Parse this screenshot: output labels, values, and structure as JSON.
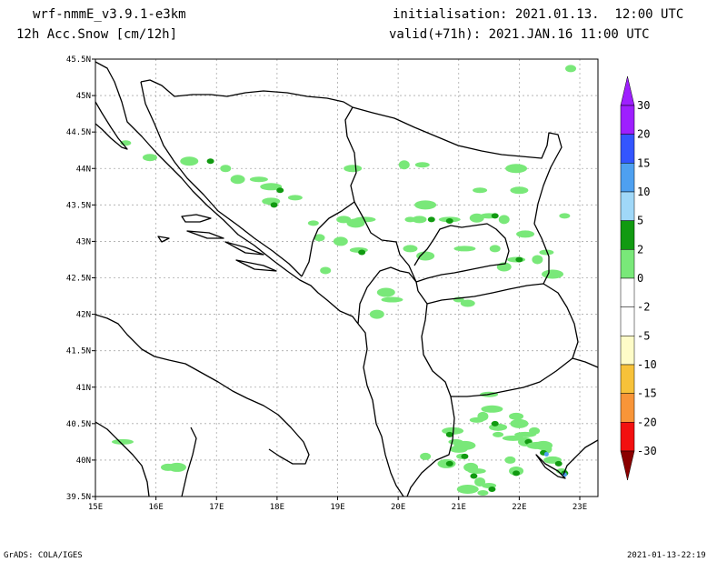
{
  "header": {
    "model": "wrf-nmmE_v3.9.1-e3km",
    "field": "12h Acc.Snow [cm/12h]",
    "init": "initialisation: 2021.01.13.  12:00 UTC",
    "valid": "valid(+71h): 2021.JAN.16 11:00 UTC"
  },
  "footer": {
    "left": "GrADS: COLA/IGES",
    "right": "2021-01-13-22:19"
  },
  "map": {
    "lon_range": [
      15,
      23.3
    ],
    "lat_range": [
      39.5,
      45.5
    ],
    "lon_ticks": [
      {
        "v": 15,
        "label": "15E"
      },
      {
        "v": 16,
        "label": "16E"
      },
      {
        "v": 17,
        "label": "17E"
      },
      {
        "v": 18,
        "label": "18E"
      },
      {
        "v": 19,
        "label": "19E"
      },
      {
        "v": 20,
        "label": "20E"
      },
      {
        "v": 21,
        "label": "21E"
      },
      {
        "v": 22,
        "label": "22E"
      },
      {
        "v": 23,
        "label": "23E"
      }
    ],
    "lat_ticks": [
      {
        "v": 39.5,
        "label": "39.5N"
      },
      {
        "v": 40,
        "label": "40N"
      },
      {
        "v": 40.5,
        "label": "40.5N"
      },
      {
        "v": 41,
        "label": "41N"
      },
      {
        "v": 41.5,
        "label": "41.5N"
      },
      {
        "v": 42,
        "label": "42N"
      },
      {
        "v": 42.5,
        "label": "42.5N"
      },
      {
        "v": 43,
        "label": "43N"
      },
      {
        "v": 43.5,
        "label": "43.5N"
      },
      {
        "v": 44,
        "label": "44N"
      },
      {
        "v": 44.5,
        "label": "44.5N"
      },
      {
        "v": 45,
        "label": "45N"
      },
      {
        "v": 45.5,
        "label": "45.5N"
      }
    ],
    "grid": true
  },
  "colorbar": {
    "levels": [
      {
        "label": "30",
        "color": "#9e1fff"
      },
      {
        "label": "20",
        "color": "#3355ff"
      },
      {
        "label": "15",
        "color": "#4ea0f0"
      },
      {
        "label": "10",
        "color": "#a0d8f8"
      },
      {
        "label": "5",
        "color": "#119a11"
      },
      {
        "label": "2",
        "color": "#79e879"
      },
      {
        "label": "0",
        "color": "#ffffff"
      },
      {
        "label": "-2",
        "color": "#ffffff"
      },
      {
        "label": "-5",
        "color": "#fefcc8"
      },
      {
        "label": "-10",
        "color": "#f7c23a"
      },
      {
        "label": "-15",
        "color": "#f89538"
      },
      {
        "label": "-20",
        "color": "#f21010"
      },
      {
        "label": "-30",
        "color": "#c40000"
      }
    ],
    "top_arrow_color": "#9e1fff",
    "bottom_arrow_color": "#8b0000"
  },
  "snow_patches": [
    {
      "lon": 15.5,
      "lat": 44.35,
      "c": "light"
    },
    {
      "lon": 15.9,
      "lat": 44.15,
      "c": "light"
    },
    {
      "lon": 16.55,
      "lat": 44.1,
      "c": "light"
    },
    {
      "lon": 16.9,
      "lat": 44.1,
      "c": "dark"
    },
    {
      "lon": 17.15,
      "lat": 44.0,
      "c": "light"
    },
    {
      "lon": 17.35,
      "lat": 43.85,
      "c": "light"
    },
    {
      "lon": 17.7,
      "lat": 43.85,
      "c": "light"
    },
    {
      "lon": 17.9,
      "lat": 43.75,
      "c": "light"
    },
    {
      "lon": 18.05,
      "lat": 43.7,
      "c": "dark"
    },
    {
      "lon": 18.3,
      "lat": 43.6,
      "c": "light"
    },
    {
      "lon": 17.9,
      "lat": 43.55,
      "c": "light"
    },
    {
      "lon": 17.95,
      "lat": 43.5,
      "c": "dark"
    },
    {
      "lon": 18.6,
      "lat": 43.25,
      "c": "light"
    },
    {
      "lon": 19.1,
      "lat": 43.3,
      "c": "light"
    },
    {
      "lon": 19.3,
      "lat": 43.25,
      "c": "light"
    },
    {
      "lon": 19.45,
      "lat": 43.3,
      "c": "light"
    },
    {
      "lon": 18.7,
      "lat": 43.05,
      "c": "light"
    },
    {
      "lon": 19.05,
      "lat": 43.0,
      "c": "light"
    },
    {
      "lon": 19.35,
      "lat": 42.88,
      "c": "light"
    },
    {
      "lon": 19.4,
      "lat": 42.85,
      "c": "dark"
    },
    {
      "lon": 20.1,
      "lat": 44.05,
      "c": "light"
    },
    {
      "lon": 20.4,
      "lat": 44.05,
      "c": "light"
    },
    {
      "lon": 19.25,
      "lat": 44.0,
      "c": "light"
    },
    {
      "lon": 20.45,
      "lat": 43.5,
      "c": "light"
    },
    {
      "lon": 20.2,
      "lat": 43.3,
      "c": "light"
    },
    {
      "lon": 20.35,
      "lat": 43.3,
      "c": "light"
    },
    {
      "lon": 20.55,
      "lat": 43.3,
      "c": "dark"
    },
    {
      "lon": 20.85,
      "lat": 43.3,
      "c": "light"
    },
    {
      "lon": 20.85,
      "lat": 43.28,
      "c": "dark"
    },
    {
      "lon": 21.3,
      "lat": 43.32,
      "c": "light"
    },
    {
      "lon": 21.5,
      "lat": 43.35,
      "c": "light"
    },
    {
      "lon": 21.6,
      "lat": 43.35,
      "c": "dark"
    },
    {
      "lon": 21.75,
      "lat": 43.3,
      "c": "light"
    },
    {
      "lon": 21.35,
      "lat": 43.7,
      "c": "light"
    },
    {
      "lon": 22.0,
      "lat": 43.7,
      "c": "light"
    },
    {
      "lon": 21.95,
      "lat": 44.0,
      "c": "light"
    },
    {
      "lon": 22.75,
      "lat": 43.35,
      "c": "light"
    },
    {
      "lon": 20.2,
      "lat": 42.9,
      "c": "light"
    },
    {
      "lon": 20.45,
      "lat": 42.8,
      "c": "light"
    },
    {
      "lon": 21.1,
      "lat": 42.9,
      "c": "light"
    },
    {
      "lon": 21.6,
      "lat": 42.9,
      "c": "light"
    },
    {
      "lon": 21.75,
      "lat": 42.65,
      "c": "light"
    },
    {
      "lon": 21.95,
      "lat": 42.75,
      "c": "light"
    },
    {
      "lon": 22.0,
      "lat": 42.75,
      "c": "dark"
    },
    {
      "lon": 22.3,
      "lat": 42.75,
      "c": "light"
    },
    {
      "lon": 22.45,
      "lat": 42.85,
      "c": "light"
    },
    {
      "lon": 22.1,
      "lat": 43.1,
      "c": "light"
    },
    {
      "lon": 22.55,
      "lat": 42.55,
      "c": "light"
    },
    {
      "lon": 21.0,
      "lat": 42.2,
      "c": "light"
    },
    {
      "lon": 21.15,
      "lat": 42.15,
      "c": "light"
    },
    {
      "lon": 19.8,
      "lat": 42.3,
      "c": "light"
    },
    {
      "lon": 19.9,
      "lat": 42.2,
      "c": "light"
    },
    {
      "lon": 18.8,
      "lat": 42.6,
      "c": "light"
    },
    {
      "lon": 19.65,
      "lat": 42.0,
      "c": "light"
    },
    {
      "lon": 21.5,
      "lat": 40.9,
      "c": "light"
    },
    {
      "lon": 21.55,
      "lat": 40.7,
      "c": "light"
    },
    {
      "lon": 21.4,
      "lat": 40.6,
      "c": "light"
    },
    {
      "lon": 21.3,
      "lat": 40.55,
      "c": "light"
    },
    {
      "lon": 21.65,
      "lat": 40.45,
      "c": "light"
    },
    {
      "lon": 21.6,
      "lat": 40.5,
      "c": "dark"
    },
    {
      "lon": 21.65,
      "lat": 40.35,
      "c": "light"
    },
    {
      "lon": 21.95,
      "lat": 40.6,
      "c": "light"
    },
    {
      "lon": 22.0,
      "lat": 40.5,
      "c": "light"
    },
    {
      "lon": 22.1,
      "lat": 40.35,
      "c": "light"
    },
    {
      "lon": 22.25,
      "lat": 40.4,
      "c": "light"
    },
    {
      "lon": 22.1,
      "lat": 40.25,
      "c": "light"
    },
    {
      "lon": 22.15,
      "lat": 40.25,
      "c": "dark"
    },
    {
      "lon": 22.3,
      "lat": 40.2,
      "c": "light"
    },
    {
      "lon": 22.45,
      "lat": 40.15,
      "c": "light"
    },
    {
      "lon": 22.4,
      "lat": 40.1,
      "c": "dark"
    },
    {
      "lon": 22.55,
      "lat": 40.0,
      "c": "light"
    },
    {
      "lon": 22.65,
      "lat": 39.95,
      "c": "dark"
    },
    {
      "lon": 22.7,
      "lat": 39.85,
      "c": "light"
    },
    {
      "lon": 22.75,
      "lat": 39.82,
      "c": "dark"
    },
    {
      "lon": 22.4,
      "lat": 40.2,
      "c": "light"
    },
    {
      "lon": 21.9,
      "lat": 40.3,
      "c": "light"
    },
    {
      "lon": 21.85,
      "lat": 40.0,
      "c": "light"
    },
    {
      "lon": 21.95,
      "lat": 39.85,
      "c": "light"
    },
    {
      "lon": 21.95,
      "lat": 39.82,
      "c": "dark"
    },
    {
      "lon": 20.9,
      "lat": 40.4,
      "c": "light"
    },
    {
      "lon": 20.85,
      "lat": 40.35,
      "c": "dark"
    },
    {
      "lon": 20.95,
      "lat": 40.25,
      "c": "light"
    },
    {
      "lon": 21.0,
      "lat": 40.15,
      "c": "light"
    },
    {
      "lon": 21.1,
      "lat": 40.2,
      "c": "light"
    },
    {
      "lon": 21.05,
      "lat": 40.05,
      "c": "light"
    },
    {
      "lon": 21.1,
      "lat": 40.05,
      "c": "dark"
    },
    {
      "lon": 20.8,
      "lat": 39.95,
      "c": "light"
    },
    {
      "lon": 20.85,
      "lat": 39.95,
      "c": "dark"
    },
    {
      "lon": 20.45,
      "lat": 40.05,
      "c": "light"
    },
    {
      "lon": 21.2,
      "lat": 39.9,
      "c": "light"
    },
    {
      "lon": 21.3,
      "lat": 39.85,
      "c": "light"
    },
    {
      "lon": 21.25,
      "lat": 39.78,
      "c": "dark"
    },
    {
      "lon": 21.35,
      "lat": 39.7,
      "c": "light"
    },
    {
      "lon": 21.5,
      "lat": 39.65,
      "c": "light"
    },
    {
      "lon": 21.55,
      "lat": 39.6,
      "c": "dark"
    },
    {
      "lon": 21.15,
      "lat": 39.6,
      "c": "light"
    },
    {
      "lon": 21.4,
      "lat": 39.55,
      "c": "light"
    },
    {
      "lon": 16.2,
      "lat": 39.9,
      "c": "light"
    },
    {
      "lon": 16.35,
      "lat": 39.9,
      "c": "light"
    },
    {
      "lon": 15.45,
      "lat": 40.25,
      "c": "light"
    },
    {
      "lon": 22.85,
      "lat": 45.37,
      "c": "light"
    }
  ],
  "snow_colors": {
    "light": "#79e879",
    "dark": "#119a11",
    "blue": "#4ea0f0"
  },
  "snow_blue_spots": [
    {
      "lon": 22.45,
      "lat": 40.08
    },
    {
      "lon": 22.75,
      "lat": 39.8
    }
  ]
}
